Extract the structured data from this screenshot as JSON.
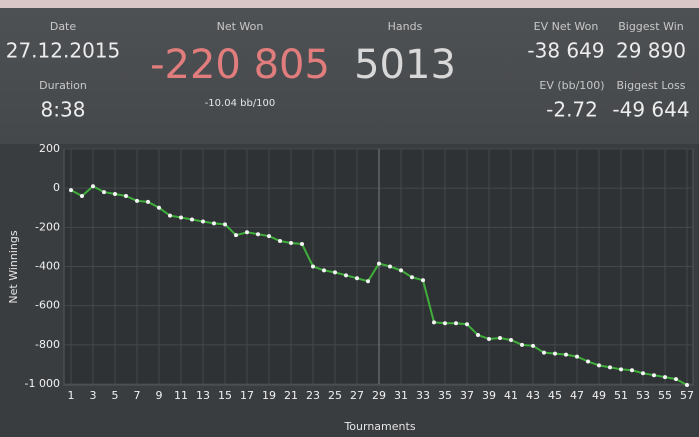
{
  "header": {
    "date": {
      "label": "Date",
      "value": "27.12.2015"
    },
    "duration": {
      "label": "Duration",
      "value": "8:38"
    },
    "net_won": {
      "label": "Net Won",
      "value": "-220 805",
      "sub": "-10.04 bb/100"
    },
    "hands": {
      "label": "Hands",
      "value": "5013"
    },
    "ev_net_won": {
      "label": "EV Net Won",
      "value": "-38 649"
    },
    "biggest_win": {
      "label": "Biggest Win",
      "value": "29 890"
    },
    "ev_bb": {
      "label": "EV (bb/100)",
      "value": "-2.72"
    },
    "biggest_loss": {
      "label": "Biggest Loss",
      "value": "-49 644"
    }
  },
  "chart_data": {
    "type": "line",
    "x_label": "Tournaments",
    "y_label": "Net Winnings",
    "x": [
      1,
      2,
      3,
      4,
      5,
      6,
      7,
      8,
      9,
      10,
      11,
      12,
      13,
      14,
      15,
      16,
      17,
      18,
      19,
      20,
      21,
      22,
      23,
      24,
      25,
      26,
      27,
      28,
      29,
      30,
      31,
      32,
      33,
      34,
      35,
      36,
      37,
      38,
      39,
      40,
      41,
      42,
      43,
      44,
      45,
      46,
      47,
      48,
      49,
      50,
      51,
      52,
      53,
      54,
      55,
      56,
      57
    ],
    "series": [
      {
        "name": "Net Won",
        "color": "#3fae3a",
        "values": [
          -10,
          -40,
          10,
          -20,
          -30,
          -40,
          -65,
          -70,
          -100,
          -140,
          -150,
          -160,
          -170,
          -180,
          -185,
          -240,
          -225,
          -235,
          -245,
          -270,
          -280,
          -285,
          -400,
          -420,
          -430,
          -445,
          -460,
          -475,
          -385,
          -400,
          -420,
          -455,
          -470,
          -685,
          -690,
          -690,
          -695,
          -750,
          -770,
          -765,
          -775,
          -800,
          -805,
          -840,
          -845,
          -850,
          -860,
          -885,
          -905,
          -915,
          -925,
          -930,
          -945,
          -955,
          -965,
          -975,
          -1005
        ]
      }
    ],
    "xlim": [
      1,
      57
    ],
    "xticks": [
      1,
      3,
      5,
      7,
      9,
      11,
      13,
      15,
      17,
      19,
      21,
      23,
      25,
      27,
      29,
      31,
      33,
      35,
      37,
      39,
      41,
      43,
      45,
      47,
      49,
      51,
      53,
      55,
      57
    ],
    "ylim": [
      -1000,
      200
    ],
    "yticks": [
      200,
      0,
      -200,
      -400,
      -600,
      -800,
      {
        "value": -1000,
        "label": "-1 000"
      }
    ],
    "grid": true
  }
}
